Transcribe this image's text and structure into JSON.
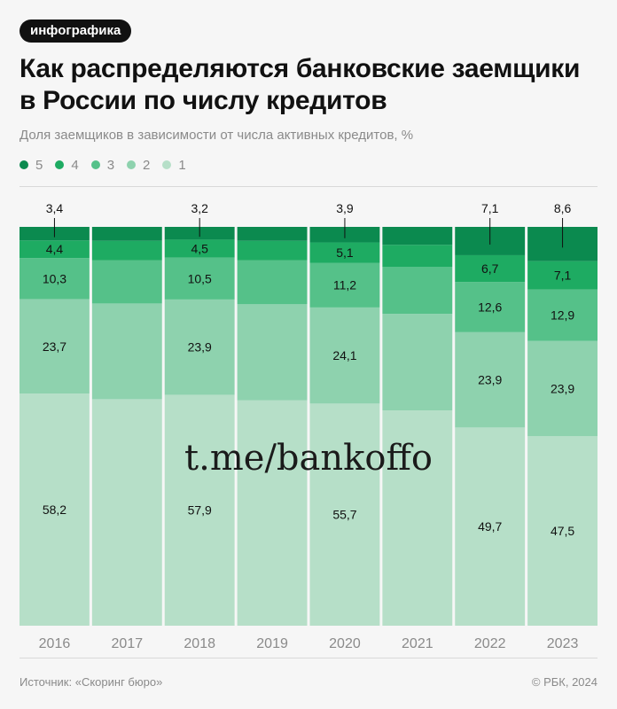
{
  "badge": "инфографика",
  "title": "Как распределяются банковские заемщики в России по числу кредитов",
  "subtitle": "Доля заемщиков в зависимости от числа активных кредитов, %",
  "legend": [
    {
      "label": "5",
      "color": "#0b8a4f"
    },
    {
      "label": "4",
      "color": "#1eab62"
    },
    {
      "label": "3",
      "color": "#55c189"
    },
    {
      "label": "2",
      "color": "#8ed2ae"
    },
    {
      "label": "1",
      "color": "#b6dfc8"
    }
  ],
  "watermark": "t.me/bankoffo",
  "source": "Источник: «Скоринг бюро»",
  "copyright": "© РБК, 2024",
  "chart_data": {
    "type": "bar",
    "stacked": true,
    "normalized": true,
    "ylim": [
      0,
      100
    ],
    "categories": [
      "2016",
      "2017",
      "2018",
      "2019",
      "2020",
      "2021",
      "2022",
      "2023"
    ],
    "series": [
      {
        "name": "1",
        "color": "#b6dfc8",
        "values": [
          58.2,
          56.8,
          57.9,
          56.5,
          55.7,
          54.0,
          49.7,
          47.5
        ],
        "labels": [
          "58,2",
          "",
          "57,9",
          "",
          "55,7",
          "",
          "49,7",
          "47,5"
        ]
      },
      {
        "name": "2",
        "color": "#8ed2ae",
        "values": [
          23.7,
          24.0,
          23.9,
          24.1,
          24.1,
          24.2,
          23.9,
          23.9
        ],
        "labels": [
          "23,7",
          "",
          "23,9",
          "",
          "24,1",
          "",
          "23,9",
          "23,9"
        ]
      },
      {
        "name": "3",
        "color": "#55c189",
        "values": [
          10.3,
          10.8,
          10.5,
          11.0,
          11.2,
          11.8,
          12.6,
          12.9
        ],
        "labels": [
          "10,3",
          "",
          "10,5",
          "",
          "11,2",
          "",
          "12,6",
          "12,9"
        ]
      },
      {
        "name": "4",
        "color": "#1eab62",
        "values": [
          4.4,
          4.9,
          4.5,
          4.9,
          5.1,
          5.5,
          6.7,
          7.1
        ],
        "labels": [
          "4,4",
          "",
          "4,5",
          "",
          "5,1",
          "",
          "6,7",
          "7,1"
        ]
      },
      {
        "name": "5",
        "color": "#0b8a4f",
        "values": [
          3.4,
          3.5,
          3.2,
          3.5,
          3.9,
          4.5,
          7.1,
          8.6
        ],
        "labels": [
          "3,4",
          "",
          "3,2",
          "",
          "3,9",
          "",
          "7,1",
          "8,6"
        ]
      }
    ]
  }
}
